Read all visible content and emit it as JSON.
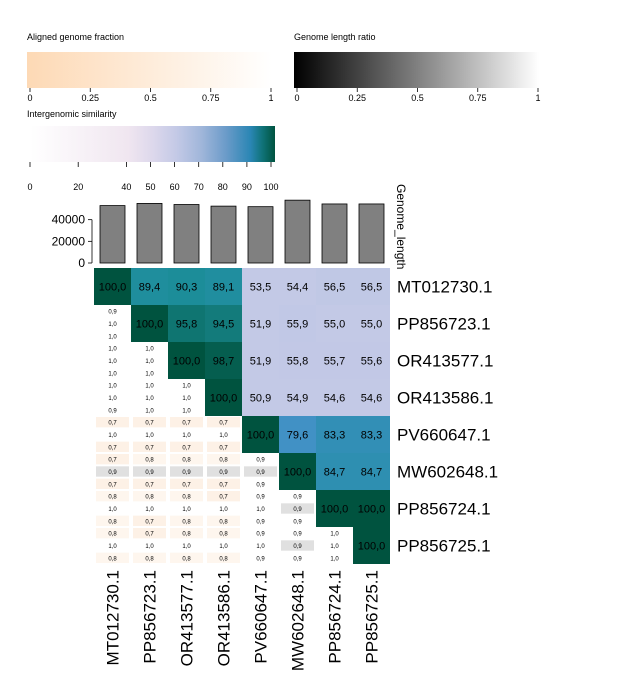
{
  "chart_data": {
    "type": "heatmap",
    "title": "",
    "genomes": [
      "MT012730.1",
      "PP856723.1",
      "OR413577.1",
      "OR413586.1",
      "PV660647.1",
      "MW602648.1",
      "PP856724.1",
      "PP856725.1"
    ],
    "genome_length_label": "Genome_length",
    "genome_length_ticks": [
      "0",
      "20000",
      "40000"
    ],
    "genome_length_ylim": [
      0,
      60000
    ],
    "genome_lengths": [
      53000,
      55000,
      54000,
      52500,
      52000,
      58000,
      54500,
      54500
    ],
    "intergenomic_similarity": [
      [
        "100.0",
        "89.4",
        "90.3",
        "89.1",
        "53.5",
        "54.4",
        "56.5",
        "56.5"
      ],
      [
        "",
        "100.0",
        "95.8",
        "94.5",
        "51.9",
        "55.9",
        "55.0",
        "55.0"
      ],
      [
        "",
        "",
        "100.0",
        "98.7",
        "51.9",
        "55.8",
        "55.7",
        "55.6"
      ],
      [
        "",
        "",
        "",
        "100.0",
        "50.9",
        "54.9",
        "54.6",
        "54.6"
      ],
      [
        "",
        "",
        "",
        "",
        "100.0",
        "79.6",
        "83.3",
        "83.3"
      ],
      [
        "",
        "",
        "",
        "",
        "",
        "100.0",
        "84.7",
        "84.7"
      ],
      [
        "",
        "",
        "",
        "",
        "",
        "",
        "100.0",
        "100.0"
      ],
      [
        "",
        "",
        "",
        "",
        "",
        "",
        "",
        "100.0"
      ]
    ],
    "aligned_fraction_pairs": [
      [
        [
          "0.9",
          "1.0",
          "1.0"
        ]
      ],
      [
        [
          "1.0",
          "1.0",
          "1.0"
        ],
        [
          "1.0",
          "1.0",
          "1.0"
        ]
      ],
      [
        [
          "1.0",
          "1.0",
          "0.9"
        ],
        [
          "1.0",
          "1.0",
          "1.0"
        ],
        [
          "1.0",
          "1.0",
          "1.0"
        ]
      ],
      [
        [
          "0.7",
          "1.0",
          "0.7"
        ],
        [
          "0.7",
          "1.0",
          "0.7"
        ],
        [
          "0.7",
          "1.0",
          "0.7"
        ],
        [
          "0.7",
          "1.0",
          "0.7"
        ]
      ],
      [
        [
          "0.7",
          "0.9",
          "0.7"
        ],
        [
          "0.8",
          "0.9",
          "0.7"
        ],
        [
          "0.8",
          "0.9",
          "0.7"
        ],
        [
          "0.8",
          "0.9",
          "0.7"
        ],
        [
          "0.9",
          "0.9",
          "0.9"
        ]
      ],
      [
        [
          "0.8",
          "1.0",
          "0.8"
        ],
        [
          "0.8",
          "1.0",
          "0.7"
        ],
        [
          "0.8",
          "1.0",
          "0.8"
        ],
        [
          "0.7",
          "1.0",
          "0.8"
        ],
        [
          "0.9",
          "1.0",
          "0.9"
        ],
        [
          "0.9",
          "0.9",
          "0.9"
        ]
      ],
      [
        [
          "0.8",
          "1.0",
          "0.8"
        ],
        [
          "0.7",
          "1.0",
          "0.8"
        ],
        [
          "0.8",
          "1.0",
          "0.8"
        ],
        [
          "0.8",
          "1.0",
          "0.8"
        ],
        [
          "0.9",
          "1.0",
          "0.9"
        ],
        [
          "0.9",
          "0.9",
          "0.9"
        ],
        [
          "1.0",
          "1.0",
          "1.0"
        ]
      ]
    ],
    "legends": {
      "aligned": {
        "title": "Aligned genome fraction",
        "ticks": [
          "0",
          "0.25",
          "0.5",
          "0.75",
          "1"
        ],
        "color_low": "#fdd9b5",
        "color_high": "#ffffff"
      },
      "length_ratio": {
        "title": "Genome length ratio",
        "ticks": [
          "0",
          "0.25",
          "0.5",
          "0.75",
          "1"
        ],
        "color_low": "#000000",
        "color_high": "#ffffff"
      },
      "similarity": {
        "title": "Intergenomic similarity",
        "ticks": [
          "0",
          "20",
          "40",
          "50",
          "60",
          "70",
          "80",
          "90",
          "100"
        ],
        "tick_values": [
          0,
          20,
          40,
          50,
          60,
          70,
          80,
          90,
          100
        ]
      }
    },
    "colors": {
      "bar_fill": "#808080",
      "sim_100": "#00533f",
      "sim_90": "#1d8e9b",
      "sim_80": "#3d8fc4",
      "sim_50": "#c3c9e6",
      "sim_light": "#e9e2f0",
      "aligned_07": "#fdf1e6",
      "aligned_08": "#fef6ee",
      "ratio_09": "#e0e0e0"
    }
  }
}
